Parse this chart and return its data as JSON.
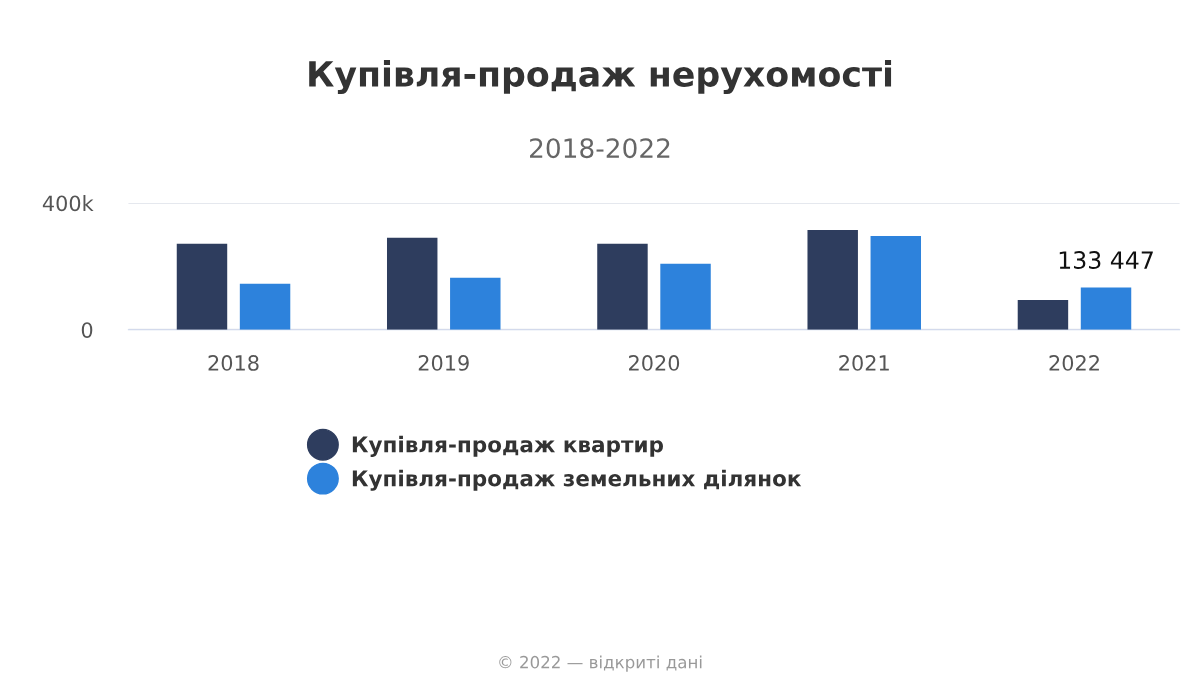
{
  "chart_data": {
    "type": "bar",
    "title": "Купівля-продаж нерухомості",
    "subtitle": "2018-2022",
    "categories": [
      "2018",
      "2019",
      "2020",
      "2021",
      "2022"
    ],
    "series": [
      {
        "name": "Купівля-продаж квартир",
        "color": "#2e3d5e",
        "values": [
          271000,
          290000,
          271000,
          315000,
          94000
        ]
      },
      {
        "name": "Купівля-продаж земельних ділянок",
        "color": "#2d82dc",
        "values": [
          145000,
          164000,
          208000,
          296000,
          133447
        ],
        "value_labels": [
          null,
          null,
          null,
          null,
          "133 447"
        ]
      }
    ],
    "ylim": [
      0,
      400000
    ],
    "yticks": [
      0,
      {
        "value": 400000,
        "label": "400k"
      }
    ],
    "grid": "y",
    "legend": "bottom",
    "marker": "circle",
    "annotations": [
      "© 2022 — відкриті дані"
    ]
  }
}
